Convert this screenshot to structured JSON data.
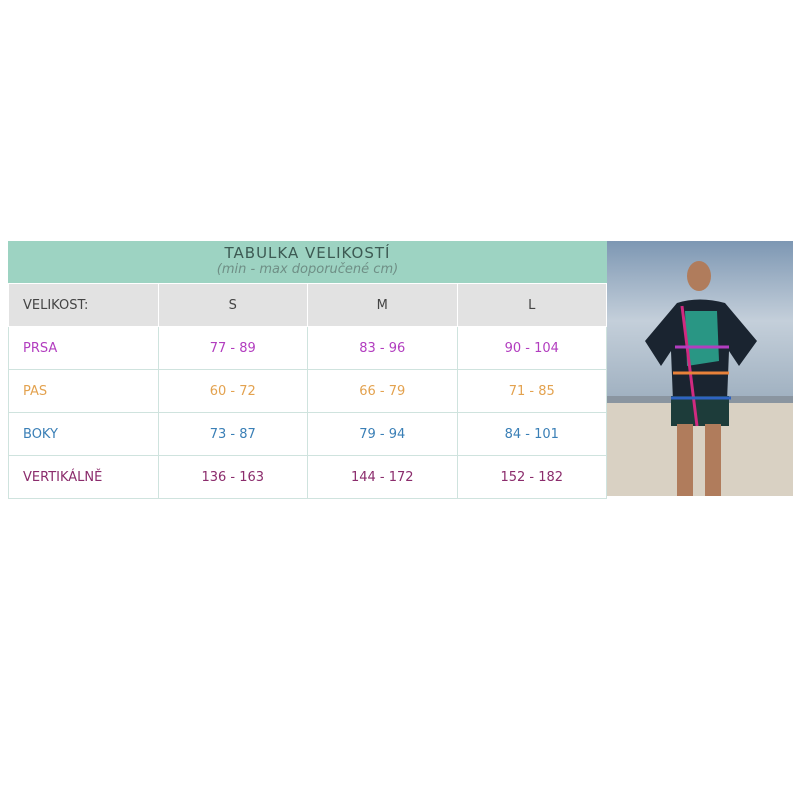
{
  "title": "TABULKA VELIKOSTÍ",
  "subtitle": "(min - max doporučené cm)",
  "header": {
    "label": "VELIKOST:",
    "sizes": [
      "S",
      "M",
      "L"
    ]
  },
  "rows": [
    {
      "label": "PRSA",
      "color": "#b23dbf",
      "values": [
        "77 - 89",
        "83 - 96",
        "90 - 104"
      ]
    },
    {
      "label": "PAS",
      "color": "#e3a24f",
      "values": [
        "60 - 72",
        "66 - 79",
        "71 - 85"
      ]
    },
    {
      "label": "BOKY",
      "color": "#3a7fb6",
      "values": [
        "73 - 87",
        "79 - 94",
        "84 - 101"
      ]
    },
    {
      "label": "VERTIKÁLNĚ",
      "color": "#8b2c6c",
      "values": [
        "136 - 163",
        "144 - 172",
        "152 - 182"
      ]
    }
  ],
  "photo": {
    "icon": "model-measurement-photo"
  }
}
